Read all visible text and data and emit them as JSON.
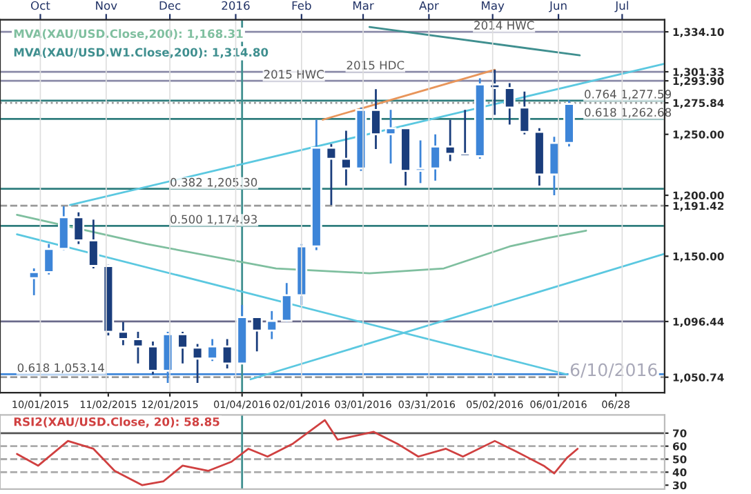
{
  "chart_data": [
    {
      "type": "candlestick",
      "x": [
        "2015-09-28",
        "2015-10-05",
        "2015-10-12",
        "2015-10-19",
        "2015-10-26",
        "2015-11-02",
        "2015-11-09",
        "2015-11-16",
        "2015-11-23",
        "2015-11-30",
        "2015-12-07",
        "2015-12-14",
        "2015-12-21",
        "2015-12-28",
        "2016-01-04",
        "2016-01-11",
        "2016-01-18",
        "2016-01-25",
        "2016-02-01",
        "2016-02-08",
        "2016-02-15",
        "2016-02-22",
        "2016-02-29",
        "2016-03-07",
        "2016-03-14",
        "2016-03-21",
        "2016-03-28",
        "2016-04-04",
        "2016-04-11",
        "2016-04-18",
        "2016-04-25",
        "2016-05-02",
        "2016-05-09",
        "2016-05-16",
        "2016-05-23",
        "2016-05-30",
        "2016-06-06"
      ],
      "ohlc": [
        [
          1132,
          1140,
          1118,
          1137
        ],
        [
          1137,
          1160,
          1135,
          1156
        ],
        [
          1156,
          1191,
          1155,
          1182
        ],
        [
          1182,
          1186,
          1160,
          1163
        ],
        [
          1163,
          1180,
          1140,
          1142
        ],
        [
          1142,
          1143,
          1085,
          1088
        ],
        [
          1088,
          1096,
          1077,
          1082
        ],
        [
          1082,
          1088,
          1062,
          1076
        ],
        [
          1076,
          1080,
          1053,
          1056
        ],
        [
          1056,
          1088,
          1046,
          1086
        ],
        [
          1086,
          1088,
          1062,
          1075
        ],
        [
          1075,
          1078,
          1046,
          1066
        ],
        [
          1066,
          1082,
          1064,
          1076
        ],
        [
          1076,
          1082,
          1058,
          1062
        ],
        [
          1062,
          1110,
          1062,
          1100
        ],
        [
          1100,
          1100,
          1072,
          1089
        ],
        [
          1089,
          1105,
          1082,
          1097
        ],
        [
          1097,
          1128,
          1096,
          1118
        ],
        [
          1118,
          1160,
          1110,
          1158
        ],
        [
          1158,
          1262,
          1155,
          1239
        ],
        [
          1239,
          1242,
          1192,
          1230
        ],
        [
          1230,
          1253,
          1208,
          1222
        ],
        [
          1222,
          1272,
          1220,
          1270
        ],
        [
          1270,
          1287,
          1238,
          1250
        ],
        [
          1250,
          1270,
          1226,
          1255
        ],
        [
          1255,
          1255,
          1208,
          1220
        ],
        [
          1220,
          1245,
          1210,
          1222
        ],
        [
          1222,
          1250,
          1212,
          1240
        ],
        [
          1240,
          1262,
          1228,
          1234
        ],
        [
          1234,
          1270,
          1232,
          1232
        ],
        [
          1232,
          1296,
          1230,
          1291
        ],
        [
          1291,
          1303,
          1266,
          1288
        ],
        [
          1288,
          1292,
          1258,
          1272
        ],
        [
          1272,
          1285,
          1250,
          1252
        ],
        [
          1252,
          1255,
          1208,
          1217
        ],
        [
          1217,
          1248,
          1200,
          1243
        ],
        [
          1243,
          1278,
          1240,
          1275
        ]
      ],
      "colors": [
        "#3d85d8",
        "#3d85d8",
        "#3d85d8",
        "#1a3d7c",
        "#1a3d7c",
        "#1a3d7c",
        "#1a3d7c",
        "#1a3d7c",
        "#1a3d7c",
        "#3d85d8",
        "#1a3d7c",
        "#1a3d7c",
        "#3d85d8",
        "#1a3d7c",
        "#3d85d8",
        "#1a3d7c",
        "#3d85d8",
        "#3d85d8",
        "#3d85d8",
        "#3d85d8",
        "#1a3d7c",
        "#1a3d7c",
        "#3d85d8",
        "#1a3d7c",
        "#3d85d8",
        "#1a3d7c",
        "#3d85d8",
        "#3d85d8",
        "#1a3d7c",
        "#1a3d7c",
        "#3d85d8",
        "#1a3d7c",
        "#1a3d7c",
        "#1a3d7c",
        "#1a3d7c",
        "#3d85d8",
        "#3d85d8"
      ],
      "series": [
        {
          "type": "line",
          "name": "MVA(XAU/USD.Close,200): 1,168.31",
          "color": "#7fbf9f",
          "x": [
            "2015-09-20",
            "2015-11-20",
            "2016-01-20",
            "2016-03-04",
            "2016-04-08",
            "2016-05-09",
            "2016-05-27",
            "2016-06-14"
          ],
          "values": [
            1184,
            1160,
            1140,
            1136,
            1140,
            1158,
            1165,
            1171
          ]
        },
        {
          "type": "line",
          "name": "MVA(XAU/USD.W1.Close,200): 1,314.80",
          "color": "#3f8f8f",
          "x": [
            "2016-03-04",
            "2016-06-11"
          ],
          "values": [
            1338,
            1314.8
          ]
        },
        {
          "type": "line",
          "color": "#5bc8e0",
          "x": [
            "2015-10-15",
            "2016-07-21"
          ],
          "values": [
            1192,
            1308
          ]
        },
        {
          "type": "line",
          "color": "#5bc8e0",
          "x": [
            "2015-09-20",
            "2016-06-05"
          ],
          "values": [
            1168,
            1053
          ]
        },
        {
          "type": "line",
          "color": "#5bc8e0",
          "x": [
            "2016-01-08",
            "2016-07-21"
          ],
          "values": [
            1049,
            1152
          ]
        },
        {
          "type": "line",
          "color": "#e8955a",
          "x": [
            "2016-02-11",
            "2016-05-02"
          ],
          "values": [
            1262,
            1303
          ]
        }
      ],
      "xlim": [
        "2015-09-12",
        "2016-07-21"
      ],
      "xticks": [
        {
          "value": "2015-10-01",
          "label": "10/01/2015"
        },
        {
          "value": "2015-11-02",
          "label": "11/02/2015"
        },
        {
          "value": "2015-12-01",
          "label": "12/01/2015"
        },
        {
          "value": "2016-01-04",
          "label": "01/04/2016"
        },
        {
          "value": "2016-02-01",
          "label": "02/01/2016"
        },
        {
          "value": "2016-03-01",
          "label": "03/01/2016"
        },
        {
          "value": "2016-03-31",
          "label": "03/31/2016"
        },
        {
          "value": "2016-05-02",
          "label": "05/02/2016"
        },
        {
          "value": "2016-06-01",
          "label": "06/01/2016"
        },
        {
          "value": "2016-06-28",
          "label": "06/28"
        }
      ],
      "x2lim": [
        "2015-09-12",
        "2016-07-21"
      ],
      "x2ticks": [
        {
          "value": "2015-10-01",
          "label": "Oct"
        },
        {
          "value": "2015-11-01",
          "label": "Nov"
        },
        {
          "value": "2015-12-01",
          "label": "Dec"
        },
        {
          "value": "2016-01-01",
          "label": "2016"
        },
        {
          "value": "2016-02-01",
          "label": "Feb"
        },
        {
          "value": "2016-03-01",
          "label": "Mar"
        },
        {
          "value": "2016-04-01",
          "label": "Apr"
        },
        {
          "value": "2016-05-01",
          "label": "May"
        },
        {
          "value": "2016-06-01",
          "label": "Jun"
        },
        {
          "value": "2016-07-01",
          "label": "Jul"
        }
      ],
      "ylim": [
        1038,
        1344
      ],
      "yticks": [
        {
          "value": 1050.74,
          "label": "1,050.74"
        },
        {
          "value": 1096.44,
          "label": "1,096.44"
        },
        {
          "value": 1150,
          "label": "1,150.00"
        },
        {
          "value": 1191.42,
          "label": "1,191.42"
        },
        {
          "value": 1200,
          "label": "1,200.00"
        },
        {
          "value": 1250,
          "label": "1,250.00"
        },
        {
          "value": 1275.84,
          "label": "1,275.84"
        },
        {
          "value": 1293.9,
          "label": "1,293.90"
        },
        {
          "value": 1301.33,
          "label": "1,301.33"
        },
        {
          "value": 1334.1,
          "label": "1,334.10"
        }
      ],
      "grid": "x",
      "ref_lines": [
        {
          "axis": "y",
          "value": 1334.1,
          "color": "#8a8aa8"
        },
        {
          "axis": "y",
          "value": 1301.33,
          "color": "#8a8aa8"
        },
        {
          "axis": "y",
          "value": 1293.9,
          "color": "#8a8aa8"
        },
        {
          "axis": "y",
          "value": 1277.59,
          "color": "#2e7d7d"
        },
        {
          "axis": "y",
          "value": 1275.84,
          "color": "#999999",
          "line_style": "dotted"
        },
        {
          "axis": "y",
          "value": 1262.68,
          "color": "#2e7d7d"
        },
        {
          "axis": "y",
          "value": 1205.3,
          "color": "#2e7d7d"
        },
        {
          "axis": "y",
          "value": 1191.42,
          "color": "#999999",
          "line_style": "dashed"
        },
        {
          "axis": "y",
          "value": 1174.93,
          "color": "#2e7d7d"
        },
        {
          "axis": "y",
          "value": 1096.44,
          "color": "#6a6a8a"
        },
        {
          "axis": "y",
          "value": 1053.14,
          "color": "#3d85d8"
        },
        {
          "axis": "y",
          "value": 1050.74,
          "color": "#999999",
          "line_style": "dashed"
        },
        {
          "axis": "x",
          "value": "2016-01-04",
          "color": "#3f8f8f"
        }
      ],
      "annotations": [
        {
          "text": "2014 HWC",
          "x": "2016-04-22",
          "y": 1334.1
        },
        {
          "text": "2015 HDC",
          "x": "2016-02-22",
          "y": 1301.33
        },
        {
          "text": "2015 HWC",
          "x": "2016-01-14",
          "y": 1293.9
        },
        {
          "text": "0.764 1,277.59",
          "x": "2016-06-13",
          "y": 1277.59
        },
        {
          "text": "0.618 1,262.68",
          "x": "2016-06-13",
          "y": 1262.68
        },
        {
          "text": "0.382 1,205.30",
          "x": "2015-12-01",
          "y": 1205.3
        },
        {
          "text": "0.500 1,174.93",
          "x": "2015-12-01",
          "y": 1174.93
        },
        {
          "text": "0.618 1,053.14",
          "x": "2015-09-20",
          "y": 1053.14
        },
        "6/10/2016"
      ]
    },
    {
      "type": "line",
      "series": [
        {
          "name": "RSI2(XAU/USD.Close, 20): 58.85",
          "color": "#d04040",
          "x": [
            "2015-09-20",
            "2015-09-30",
            "2015-10-14",
            "2015-10-26",
            "2015-11-05",
            "2015-11-18",
            "2015-11-28",
            "2015-12-07",
            "2015-12-19",
            "2015-12-30",
            "2016-01-07",
            "2016-01-16",
            "2016-01-28",
            "2016-02-12",
            "2016-02-18",
            "2016-03-06",
            "2016-03-17",
            "2016-03-27",
            "2016-04-09",
            "2016-04-17",
            "2016-05-02",
            "2016-05-12",
            "2016-05-25",
            "2016-05-30",
            "2016-06-05",
            "2016-06-10"
          ],
          "values": [
            54,
            45,
            64,
            58,
            41,
            30,
            33,
            45,
            41,
            48,
            58,
            52,
            62,
            80,
            65,
            71,
            62,
            52,
            58,
            52,
            64,
            56,
            45,
            39,
            51,
            58
          ]
        }
      ],
      "xlim": [
        "2015-09-12",
        "2016-07-21"
      ],
      "ylim": [
        27,
        84
      ],
      "yticks": [
        30,
        40,
        50,
        60,
        70
      ],
      "tick_labels": "y",
      "ref_lines": [
        {
          "axis": "y",
          "value": 70,
          "color": "#555555"
        },
        {
          "axis": "y",
          "value": 60,
          "color": "#aaaaaa",
          "line_style": "dashed"
        },
        {
          "axis": "y",
          "value": 50,
          "color": "#aaaaaa",
          "line_style": "dashed"
        },
        {
          "axis": "y",
          "value": 40,
          "color": "#aaaaaa",
          "line_style": "dashed"
        },
        {
          "axis": "x",
          "value": "2016-01-04",
          "color": "#3f8f8f"
        }
      ]
    }
  ]
}
